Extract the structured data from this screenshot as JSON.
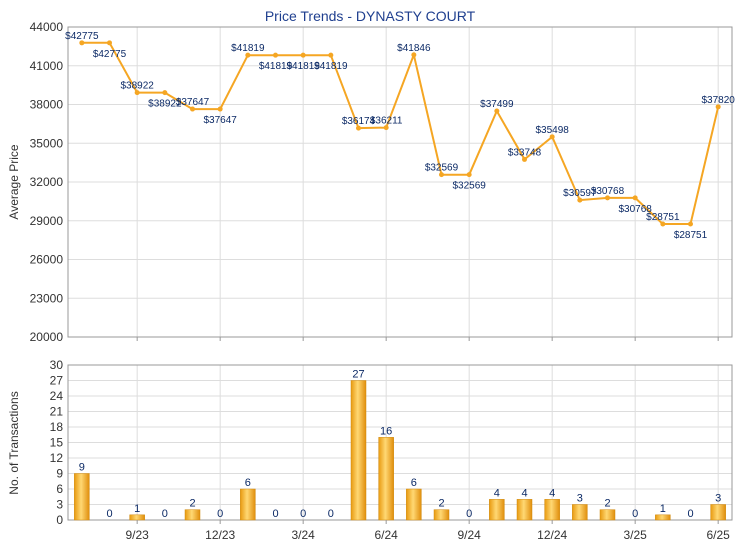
{
  "title": "Price Trends - DYNASTY COURT",
  "chart_data": [
    {
      "type": "line",
      "ylabel": "Average Price",
      "ylim": [
        20000,
        44000
      ],
      "yticks": [
        "20000",
        "23000",
        "26000",
        "29000",
        "32000",
        "35000",
        "38000",
        "41000",
        "44000"
      ],
      "xticks": [
        "9/23",
        "12/23",
        "3/24",
        "6/24",
        "9/24",
        "12/24",
        "3/25",
        "6/25"
      ],
      "grid": true,
      "series_color": "#f5a623",
      "values": [
        42775,
        42775,
        38922,
        38922,
        37647,
        37647,
        41819,
        41819,
        41819,
        41819,
        36174,
        36211,
        41846,
        32569,
        32569,
        37499,
        33748,
        35498,
        30597,
        30768,
        30768,
        28751,
        28751,
        37820
      ],
      "labels": [
        "$42775",
        "$42775",
        "$38922",
        "$38922",
        "$37647",
        "$37647",
        "$41819",
        "$41819",
        "$41819",
        "$41819",
        "$36174",
        "$36211",
        "$41846",
        "$32569",
        "$32569",
        "$37499",
        "$33748",
        "$35498",
        "$30597",
        "$30768",
        "$30768",
        "$28751",
        "$28751",
        "$37820"
      ]
    },
    {
      "type": "bar",
      "ylabel": "No. of Transactions",
      "ylim": [
        0,
        30
      ],
      "yticks": [
        "0",
        "3",
        "6",
        "9",
        "12",
        "15",
        "18",
        "21",
        "24",
        "27",
        "30"
      ],
      "xticks": [
        "9/23",
        "12/23",
        "3/24",
        "6/24",
        "9/24",
        "12/24",
        "3/25",
        "6/25"
      ],
      "grid": true,
      "bar_color": "#f0a818",
      "values": [
        9,
        0,
        1,
        0,
        2,
        0,
        6,
        0,
        0,
        0,
        27,
        16,
        6,
        2,
        0,
        4,
        4,
        4,
        3,
        2,
        0,
        1,
        0,
        3
      ]
    }
  ]
}
